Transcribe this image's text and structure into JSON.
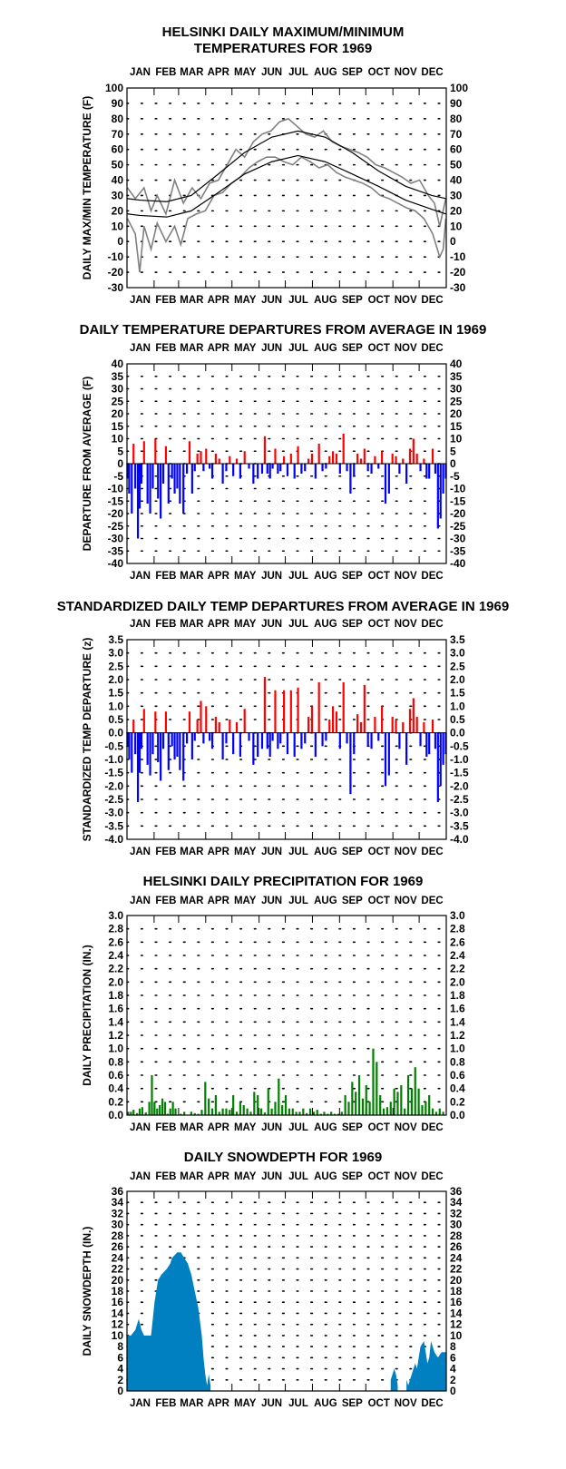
{
  "chart_data": [
    {
      "type": "line",
      "title": "HELSINKI DAILY MAXIMUM/MINIMUM\nTEMPERATURES FOR 1969",
      "ylabel": "DAILY MAX/MIN TEMPERATURE  (F)",
      "xlabel": "",
      "months": [
        "JAN",
        "FEB",
        "MAR",
        "APR",
        "MAY",
        "JUN",
        "JUL",
        "AUG",
        "SEP",
        "OCT",
        "NOV",
        "DEC"
      ],
      "ylim": [
        -30,
        100
      ],
      "yticks": [
        -30,
        -20,
        -10,
        0,
        10,
        20,
        30,
        40,
        50,
        60,
        70,
        80,
        90,
        100
      ],
      "grid": true,
      "colors": {
        "observed": "#808080",
        "normal": "#000000"
      },
      "normal_max": {
        "day": [
          1,
          15,
          46,
          74,
          105,
          135,
          166,
          196,
          227,
          258,
          288,
          319,
          349,
          365
        ],
        "value": [
          28,
          27,
          26,
          30,
          44,
          58,
          68,
          72,
          68,
          58,
          46,
          36,
          30,
          28
        ]
      },
      "normal_min": {
        "day": [
          1,
          15,
          46,
          74,
          105,
          135,
          166,
          196,
          227,
          258,
          288,
          319,
          349,
          365
        ],
        "value": [
          18,
          17,
          16,
          20,
          32,
          44,
          52,
          56,
          52,
          44,
          36,
          27,
          21,
          18
        ]
      },
      "observed_max": {
        "day": [
          1,
          10,
          20,
          28,
          35,
          45,
          55,
          65,
          75,
          85,
          95,
          105,
          115,
          125,
          135,
          145,
          155,
          165,
          175,
          185,
          195,
          205,
          215,
          225,
          235,
          245,
          255,
          265,
          275,
          285,
          295,
          305,
          315,
          325,
          335,
          345,
          352,
          358,
          365
        ],
        "value": [
          35,
          28,
          35,
          20,
          30,
          18,
          40,
          25,
          35,
          28,
          38,
          40,
          50,
          60,
          55,
          65,
          70,
          72,
          78,
          80,
          75,
          70,
          68,
          72,
          65,
          62,
          60,
          58,
          55,
          50,
          48,
          45,
          42,
          38,
          40,
          30,
          25,
          10,
          28
        ]
      },
      "observed_min": {
        "day": [
          1,
          10,
          15,
          20,
          28,
          35,
          45,
          55,
          62,
          70,
          80,
          90,
          100,
          110,
          120,
          130,
          140,
          150,
          160,
          170,
          180,
          190,
          200,
          210,
          220,
          230,
          240,
          250,
          260,
          270,
          280,
          290,
          300,
          310,
          320,
          330,
          340,
          350,
          358,
          362,
          365
        ],
        "value": [
          15,
          5,
          -20,
          10,
          -5,
          12,
          0,
          10,
          -2,
          15,
          18,
          20,
          30,
          32,
          38,
          42,
          48,
          52,
          55,
          55,
          52,
          50,
          55,
          52,
          48,
          50,
          45,
          42,
          40,
          38,
          35,
          30,
          28,
          25,
          22,
          20,
          15,
          5,
          -10,
          -5,
          15
        ]
      }
    },
    {
      "type": "bar",
      "title": "DAILY TEMPERATURE DEPARTURES FROM AVERAGE IN 1969",
      "ylabel": "DEPARTURE FROM AVERAGE  (F)",
      "xlabel": "",
      "months": [
        "JAN",
        "FEB",
        "MAR",
        "APR",
        "MAY",
        "JUN",
        "JUL",
        "AUG",
        "SEP",
        "OCT",
        "NOV",
        "DEC"
      ],
      "ylim": [
        -40,
        40
      ],
      "yticks": [
        -40,
        -35,
        -30,
        -25,
        -20,
        -15,
        -10,
        -5,
        0,
        5,
        10,
        15,
        20,
        25,
        30,
        35,
        40
      ],
      "grid": true,
      "colors": {
        "positive": "#ff0000",
        "negative": "#0000ff"
      },
      "days": [
        1,
        3,
        6,
        8,
        10,
        13,
        15,
        17,
        20,
        24,
        27,
        30,
        33,
        36,
        39,
        42,
        45,
        48,
        52,
        55,
        58,
        61,
        65,
        69,
        72,
        75,
        78,
        81,
        85,
        88,
        91,
        95,
        98,
        102,
        106,
        110,
        114,
        118,
        122,
        126,
        130,
        135,
        140,
        145,
        150,
        155,
        158,
        161,
        164,
        167,
        170,
        173,
        176,
        180,
        184,
        188,
        192,
        196,
        200,
        204,
        208,
        212,
        216,
        220,
        224,
        228,
        232,
        236,
        240,
        244,
        248,
        252,
        256,
        260,
        264,
        268,
        272,
        276,
        280,
        284,
        288,
        292,
        296,
        300,
        304,
        308,
        312,
        316,
        320,
        324,
        328,
        332,
        336,
        340,
        343,
        346,
        350,
        353,
        356,
        359,
        362,
        365
      ],
      "values": [
        -6,
        -12,
        -20,
        8,
        -10,
        -30,
        -18,
        -8,
        9,
        -16,
        -20,
        -10,
        10,
        -14,
        -22,
        -8,
        7,
        -16,
        -6,
        -12,
        -10,
        -16,
        -20,
        -4,
        9,
        -12,
        -3,
        4,
        5,
        -3,
        6,
        -2,
        -6,
        4,
        2,
        -8,
        -3,
        3,
        -5,
        2,
        -6,
        5,
        -2,
        -8,
        -6,
        -4,
        11,
        -4,
        -6,
        -2,
        6,
        -4,
        -3,
        3,
        -5,
        4,
        -6,
        7,
        -4,
        -3,
        2,
        4,
        -6,
        8,
        -3,
        -2,
        3,
        5,
        4,
        -4,
        12,
        -3,
        -12,
        -5,
        4,
        2,
        6,
        -3,
        -4,
        3,
        -2,
        5,
        -16,
        -12,
        4,
        3,
        -4,
        2,
        -8,
        6,
        10,
        4,
        -3,
        2,
        -6,
        -6,
        6,
        -4,
        -26,
        -22,
        -12,
        -6
      ],
      "positive_color": "#ff0000",
      "negative_color": "#0000ff"
    },
    {
      "type": "bar",
      "title": "STANDARDIZED DAILY TEMP DEPARTURES FROM AVERAGE IN 1969",
      "ylabel": "STANDARDIZED TEMP DEPARTURE  (z)",
      "xlabel": "",
      "months": [
        "JAN",
        "FEB",
        "MAR",
        "APR",
        "MAY",
        "JUN",
        "JUL",
        "AUG",
        "SEP",
        "OCT",
        "NOV",
        "DEC"
      ],
      "ylim": [
        -4.0,
        3.5
      ],
      "yticks": [
        -4.0,
        -3.5,
        -3.0,
        -2.5,
        -2.0,
        -1.5,
        -1.0,
        -0.5,
        0.0,
        0.5,
        1.0,
        1.5,
        2.0,
        2.5,
        3.0,
        3.5
      ],
      "grid": true,
      "colors": {
        "positive": "#ff0000",
        "negative": "#0000ff"
      },
      "days": [
        1,
        3,
        6,
        8,
        10,
        13,
        15,
        17,
        20,
        24,
        27,
        30,
        33,
        36,
        39,
        42,
        45,
        48,
        52,
        55,
        58,
        61,
        65,
        69,
        72,
        75,
        78,
        81,
        85,
        88,
        91,
        95,
        98,
        102,
        106,
        110,
        114,
        118,
        122,
        126,
        130,
        135,
        140,
        145,
        150,
        155,
        158,
        161,
        164,
        167,
        170,
        173,
        176,
        180,
        184,
        188,
        192,
        196,
        200,
        204,
        208,
        212,
        216,
        220,
        224,
        228,
        232,
        236,
        240,
        244,
        248,
        252,
        256,
        260,
        264,
        268,
        272,
        276,
        280,
        284,
        288,
        292,
        296,
        300,
        304,
        308,
        312,
        316,
        320,
        324,
        328,
        332,
        336,
        340,
        343,
        346,
        350,
        353,
        356,
        359,
        362,
        365
      ],
      "values": [
        -0.5,
        -1.0,
        -1.5,
        0.5,
        -0.8,
        -2.6,
        -1.5,
        -0.6,
        0.9,
        -1.2,
        -1.6,
        -0.8,
        0.8,
        -1.1,
        -1.8,
        -0.6,
        0.8,
        -1.4,
        -0.5,
        -1.0,
        -0.9,
        -1.4,
        -1.8,
        -0.4,
        0.8,
        -1.0,
        -0.3,
        0.5,
        1.2,
        -0.4,
        1.0,
        -0.3,
        -0.6,
        0.6,
        0.4,
        -1.0,
        -0.4,
        0.5,
        -0.8,
        0.4,
        -0.9,
        0.9,
        -0.3,
        -1.2,
        -0.9,
        -0.6,
        2.1,
        -0.6,
        -0.9,
        -0.3,
        1.6,
        -0.6,
        -0.4,
        1.6,
        -0.8,
        1.6,
        -0.9,
        1.7,
        -0.6,
        -0.4,
        0.6,
        1.0,
        -0.9,
        1.9,
        -0.5,
        -0.3,
        0.5,
        1.0,
        0.8,
        -0.6,
        1.9,
        -0.4,
        -2.3,
        -0.8,
        0.7,
        0.4,
        1.8,
        -0.5,
        -0.6,
        0.6,
        -0.3,
        1.0,
        -2.0,
        -1.6,
        0.6,
        0.5,
        -0.6,
        0.4,
        -1.2,
        0.9,
        1.3,
        0.6,
        -0.5,
        0.4,
        -0.9,
        -0.8,
        0.5,
        -0.6,
        -2.6,
        -2.0,
        -1.2,
        -0.8
      ],
      "positive_color": "#ff0000",
      "negative_color": "#0000ff"
    },
    {
      "type": "bar",
      "title": "HELSINKI DAILY PRECIPITATION FOR 1969",
      "ylabel": "DAILY PRECIPITATION (IN.)",
      "xlabel": "",
      "months": [
        "JAN",
        "FEB",
        "MAR",
        "APR",
        "MAY",
        "JUN",
        "JUL",
        "AUG",
        "SEP",
        "OCT",
        "NOV",
        "DEC"
      ],
      "ylim": [
        0.0,
        3.0
      ],
      "yticks": [
        0.0,
        0.2,
        0.4,
        0.6,
        0.8,
        1.0,
        1.2,
        1.4,
        1.6,
        1.8,
        2.0,
        2.2,
        2.4,
        2.6,
        2.8,
        3.0
      ],
      "grid": true,
      "colors": {
        "bars": "#008000"
      },
      "days": [
        2,
        5,
        8,
        12,
        15,
        18,
        22,
        26,
        29,
        32,
        35,
        38,
        41,
        44,
        47,
        50,
        53,
        56,
        62,
        66,
        74,
        78,
        82,
        86,
        90,
        94,
        98,
        102,
        106,
        110,
        114,
        118,
        122,
        126,
        130,
        134,
        138,
        142,
        146,
        150,
        154,
        158,
        162,
        166,
        170,
        174,
        178,
        182,
        186,
        190,
        194,
        198,
        202,
        206,
        210,
        214,
        218,
        222,
        226,
        230,
        234,
        238,
        242,
        246,
        250,
        254,
        258,
        262,
        266,
        270,
        274,
        278,
        282,
        286,
        290,
        294,
        298,
        302,
        306,
        310,
        314,
        318,
        322,
        326,
        330,
        334,
        338,
        342,
        346,
        350,
        354,
        358,
        362
      ],
      "values": [
        0.05,
        0.05,
        0.08,
        0.03,
        0.1,
        0.12,
        0.04,
        0.2,
        0.6,
        0.2,
        0.1,
        0.15,
        0.25,
        0.2,
        0.02,
        0.1,
        0.2,
        0.1,
        0.02,
        0.05,
        0.05,
        0.03,
        0.02,
        0.08,
        0.5,
        0.25,
        0.1,
        0.3,
        0.05,
        0.1,
        0.1,
        0.08,
        0.3,
        0.05,
        0.2,
        0.15,
        0.1,
        0.05,
        0.35,
        0.3,
        0.1,
        0.04,
        0.4,
        0.1,
        0.2,
        0.55,
        0.15,
        0.3,
        0.1,
        0.1,
        0.05,
        0.05,
        0.1,
        0.03,
        0.1,
        0.05,
        0.08,
        0.02,
        0.05,
        0.02,
        0.05,
        0.02,
        0.02,
        0.05,
        0.3,
        0.2,
        0.5,
        0.35,
        0.6,
        0.25,
        0.45,
        0.2,
        1.0,
        0.8,
        0.3,
        0.1,
        0.12,
        0.2,
        0.4,
        0.35,
        0.45,
        0.1,
        0.6,
        0.4,
        0.72,
        0.4,
        0.15,
        0.2,
        0.3,
        0.1,
        0.05,
        0.1,
        0.05
      ],
      "bar_color": "#008000"
    },
    {
      "type": "area",
      "title": "DAILY SNOWDEPTH FOR 1969",
      "ylabel": "DAILY SNOWDEPTH (IN.)",
      "xlabel": "",
      "months": [
        "JAN",
        "FEB",
        "MAR",
        "APR",
        "MAY",
        "JUN",
        "JUL",
        "AUG",
        "SEP",
        "OCT",
        "NOV",
        "DEC"
      ],
      "ylim": [
        0,
        36
      ],
      "yticks": [
        0,
        2,
        4,
        6,
        8,
        10,
        12,
        14,
        16,
        18,
        20,
        22,
        24,
        26,
        28,
        30,
        32,
        34,
        36
      ],
      "grid": true,
      "colors": {
        "area": "#0080c0"
      },
      "x": [
        1,
        5,
        10,
        14,
        17,
        20,
        22,
        28,
        32,
        36,
        40,
        46,
        50,
        52,
        58,
        62,
        66,
        70,
        74,
        78,
        82,
        86,
        88,
        90,
        92,
        94,
        96,
        98,
        100,
        300,
        302,
        304,
        306,
        308,
        310,
        312,
        318,
        320,
        322,
        326,
        330,
        332,
        336,
        340,
        344,
        346,
        348,
        352,
        356,
        360,
        365
      ],
      "y": [
        10,
        10,
        11,
        13,
        11,
        10,
        10,
        10,
        16,
        20,
        21,
        22,
        23,
        24,
        25,
        25,
        24,
        23,
        21,
        18,
        15,
        10,
        6,
        3,
        1,
        3,
        1,
        0,
        0,
        0,
        2,
        3,
        4,
        3,
        1,
        0,
        0,
        2,
        1,
        3,
        5,
        4,
        8,
        9,
        5,
        6,
        9,
        7,
        6,
        7,
        7
      ],
      "area_color": "#0080c0"
    }
  ]
}
